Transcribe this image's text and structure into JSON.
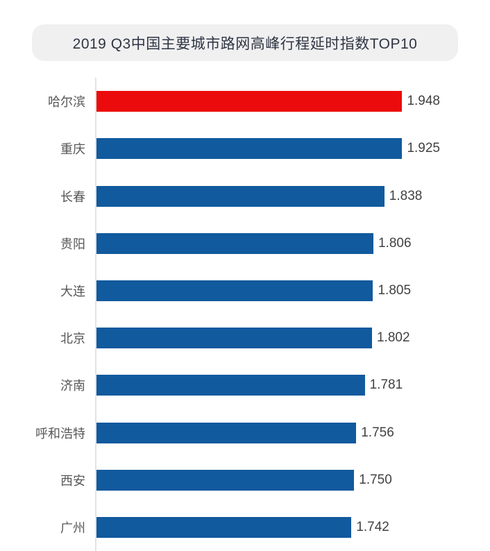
{
  "title": "2019 Q3中国主要城市路网高峰行程延时指数TOP10",
  "chart_data": {
    "type": "bar",
    "orientation": "horizontal",
    "title": "2019 Q3中国主要城市路网高峰行程延时指数TOP10",
    "categories": [
      "哈尔滨",
      "重庆",
      "长春",
      "贵阳",
      "大连",
      "北京",
      "济南",
      "呼和浩特",
      "西安",
      "广州"
    ],
    "values": [
      1.948,
      1.925,
      1.838,
      1.806,
      1.805,
      1.802,
      1.781,
      1.756,
      1.75,
      1.742
    ],
    "value_labels": [
      "1.948",
      "1.925",
      "1.838",
      "1.806",
      "1.805",
      "1.802",
      "1.781",
      "1.756",
      "1.750",
      "1.742"
    ],
    "xlim": [
      1.0,
      2.0
    ],
    "grid": false,
    "legend": "none",
    "highlight_index": 0,
    "bar_colors": {
      "highlight": "#ec0b0c",
      "default": "#115a9e"
    }
  },
  "colors": {
    "background": "#ffffff",
    "title_pill_bg": "#f0f0f1",
    "title_text": "#2e3542",
    "axis_line": "#e3e3e3",
    "category_label": "#575757",
    "value_label": "#414141"
  }
}
